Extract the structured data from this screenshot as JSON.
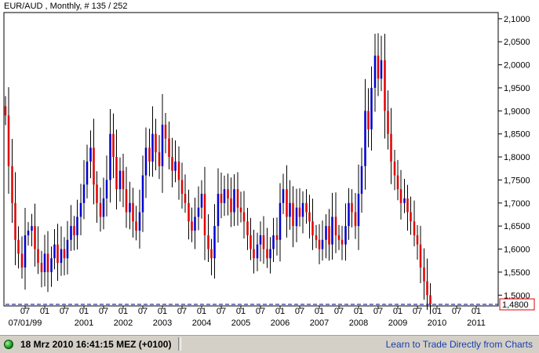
{
  "header": {
    "symbol": "EUR/AUD , Monthly, # 135 / 252"
  },
  "status_bar": {
    "datetime": "18 Mrz 2010 16:41:15  MEZ (+0100)",
    "link": "Learn to Trade Directly from Charts"
  },
  "colors": {
    "up": "#0000d0",
    "down": "#e00000",
    "wick": "#000000",
    "current_line": "#000080",
    "current_label_border": "#e00000"
  },
  "chart_data": {
    "type": "candlestick",
    "title": "EUR/AUD , Monthly, # 135 / 252",
    "y_axis": {
      "position": "right",
      "min": 1.48,
      "max": 2.11,
      "ticks": [
        "2,1000",
        "2,0500",
        "2,0000",
        "1,9500",
        "1,9000",
        "1,8500",
        "1,8000",
        "1,7500",
        "1,7000",
        "1,6500",
        "1,6000",
        "1,5500",
        "1,5000"
      ],
      "tick_values": [
        2.1,
        2.05,
        2.0,
        1.95,
        1.9,
        1.85,
        1.8,
        1.75,
        1.7,
        1.65,
        1.6,
        1.55,
        1.5
      ]
    },
    "current_value": {
      "value": 1.48,
      "label": "1,4800"
    },
    "x_axis": {
      "month_labels": [
        {
          "t": 1999.5,
          "label": "07"
        },
        {
          "t": 2000.0,
          "label": "01"
        },
        {
          "t": 2000.5,
          "label": "07"
        },
        {
          "t": 2001.0,
          "label": "01"
        },
        {
          "t": 2001.5,
          "label": "07"
        },
        {
          "t": 2002.0,
          "label": "01"
        },
        {
          "t": 2002.5,
          "label": "07"
        },
        {
          "t": 2003.0,
          "label": "01"
        },
        {
          "t": 2003.5,
          "label": "07"
        },
        {
          "t": 2004.0,
          "label": "01"
        },
        {
          "t": 2004.5,
          "label": "07"
        },
        {
          "t": 2005.0,
          "label": "01"
        },
        {
          "t": 2005.5,
          "label": "07"
        },
        {
          "t": 2006.0,
          "label": "01"
        },
        {
          "t": 2006.5,
          "label": "07"
        },
        {
          "t": 2007.0,
          "label": "01"
        },
        {
          "t": 2007.5,
          "label": "07"
        },
        {
          "t": 2008.0,
          "label": "01"
        },
        {
          "t": 2008.5,
          "label": "07"
        },
        {
          "t": 2009.0,
          "label": "01"
        },
        {
          "t": 2009.5,
          "label": "07"
        },
        {
          "t": 2010.0,
          "label": "01"
        },
        {
          "t": 2010.5,
          "label": "07"
        },
        {
          "t": 2011.0,
          "label": "01"
        }
      ],
      "year_labels": [
        {
          "t": 1999.5,
          "label": "07/01/99"
        },
        {
          "t": 2001.0,
          "label": "2001"
        },
        {
          "t": 2002.0,
          "label": "2002"
        },
        {
          "t": 2003.0,
          "label": "2003"
        },
        {
          "t": 2004.0,
          "label": "2004"
        },
        {
          "t": 2005.0,
          "label": "2005"
        },
        {
          "t": 2006.0,
          "label": "2006"
        },
        {
          "t": 2007.0,
          "label": "2007"
        },
        {
          "t": 2008.0,
          "label": "2008"
        },
        {
          "t": 2009.0,
          "label": "2009"
        },
        {
          "t": 2010.0,
          "label": "2010"
        },
        {
          "t": 2011.0,
          "label": "2011"
        }
      ],
      "start": 1999.0,
      "end": 2011.5
    },
    "series_close": [
      [
        1999.0,
        1.89
      ],
      [
        1999.08,
        1.78
      ],
      [
        1999.17,
        1.7
      ],
      [
        1999.25,
        1.62
      ],
      [
        1999.33,
        1.59
      ],
      [
        1999.42,
        1.56
      ],
      [
        1999.5,
        1.63
      ],
      [
        1999.58,
        1.64
      ],
      [
        1999.67,
        1.65
      ],
      [
        1999.75,
        1.6
      ],
      [
        1999.83,
        1.57
      ],
      [
        1999.92,
        1.55
      ],
      [
        2000.0,
        1.59
      ],
      [
        2000.08,
        1.55
      ],
      [
        2000.17,
        1.58
      ],
      [
        2000.25,
        1.61
      ],
      [
        2000.33,
        1.57
      ],
      [
        2000.42,
        1.6
      ],
      [
        2000.5,
        1.58
      ],
      [
        2000.58,
        1.62
      ],
      [
        2000.67,
        1.65
      ],
      [
        2000.75,
        1.63
      ],
      [
        2000.83,
        1.67
      ],
      [
        2000.92,
        1.7
      ],
      [
        2001.0,
        1.74
      ],
      [
        2001.08,
        1.79
      ],
      [
        2001.17,
        1.82
      ],
      [
        2001.25,
        1.74
      ],
      [
        2001.33,
        1.7
      ],
      [
        2001.42,
        1.67
      ],
      [
        2001.5,
        1.71
      ],
      [
        2001.58,
        1.75
      ],
      [
        2001.67,
        1.85
      ],
      [
        2001.75,
        1.8
      ],
      [
        2001.83,
        1.73
      ],
      [
        2001.92,
        1.77
      ],
      [
        2002.0,
        1.73
      ],
      [
        2002.08,
        1.68
      ],
      [
        2002.17,
        1.7
      ],
      [
        2002.25,
        1.66
      ],
      [
        2002.33,
        1.64
      ],
      [
        2002.42,
        1.68
      ],
      [
        2002.5,
        1.76
      ],
      [
        2002.58,
        1.82
      ],
      [
        2002.67,
        1.79
      ],
      [
        2002.75,
        1.85
      ],
      [
        2002.83,
        1.81
      ],
      [
        2002.92,
        1.78
      ],
      [
        2003.0,
        1.87
      ],
      [
        2003.08,
        1.84
      ],
      [
        2003.17,
        1.8
      ],
      [
        2003.25,
        1.77
      ],
      [
        2003.33,
        1.79
      ],
      [
        2003.42,
        1.75
      ],
      [
        2003.5,
        1.72
      ],
      [
        2003.58,
        1.7
      ],
      [
        2003.67,
        1.66
      ],
      [
        2003.75,
        1.64
      ],
      [
        2003.83,
        1.67
      ],
      [
        2003.92,
        1.69
      ],
      [
        2004.0,
        1.72
      ],
      [
        2004.08,
        1.63
      ],
      [
        2004.17,
        1.6
      ],
      [
        2004.25,
        1.58
      ],
      [
        2004.33,
        1.65
      ],
      [
        2004.42,
        1.72
      ],
      [
        2004.5,
        1.7
      ],
      [
        2004.58,
        1.73
      ],
      [
        2004.67,
        1.71
      ],
      [
        2004.75,
        1.68
      ],
      [
        2004.83,
        1.73
      ],
      [
        2004.92,
        1.69
      ],
      [
        2005.0,
        1.68
      ],
      [
        2005.08,
        1.66
      ],
      [
        2005.17,
        1.63
      ],
      [
        2005.25,
        1.6
      ],
      [
        2005.33,
        1.58
      ],
      [
        2005.42,
        1.61
      ],
      [
        2005.5,
        1.63
      ],
      [
        2005.58,
        1.6
      ],
      [
        2005.67,
        1.58
      ],
      [
        2005.75,
        1.6
      ],
      [
        2005.83,
        1.63
      ],
      [
        2005.92,
        1.62
      ],
      [
        2006.0,
        1.7
      ],
      [
        2006.08,
        1.73
      ],
      [
        2006.17,
        1.67
      ],
      [
        2006.25,
        1.7
      ],
      [
        2006.33,
        1.65
      ],
      [
        2006.42,
        1.69
      ],
      [
        2006.5,
        1.67
      ],
      [
        2006.58,
        1.7
      ],
      [
        2006.67,
        1.68
      ],
      [
        2006.75,
        1.66
      ],
      [
        2006.83,
        1.63
      ],
      [
        2006.92,
        1.62
      ],
      [
        2007.0,
        1.6
      ],
      [
        2007.08,
        1.62
      ],
      [
        2007.17,
        1.65
      ],
      [
        2007.25,
        1.61
      ],
      [
        2007.33,
        1.67
      ],
      [
        2007.42,
        1.63
      ],
      [
        2007.5,
        1.62
      ],
      [
        2007.58,
        1.61
      ],
      [
        2007.67,
        1.65
      ],
      [
        2007.75,
        1.7
      ],
      [
        2007.83,
        1.68
      ],
      [
        2007.92,
        1.65
      ],
      [
        2008.0,
        1.72
      ],
      [
        2008.08,
        1.78
      ],
      [
        2008.17,
        1.9
      ],
      [
        2008.25,
        1.86
      ],
      [
        2008.33,
        1.95
      ],
      [
        2008.42,
        2.02
      ],
      [
        2008.5,
        1.97
      ],
      [
        2008.58,
        2.01
      ],
      [
        2008.67,
        1.9
      ],
      [
        2008.75,
        1.85
      ],
      [
        2008.83,
        1.79
      ],
      [
        2008.92,
        1.76
      ],
      [
        2009.0,
        1.73
      ],
      [
        2009.08,
        1.7
      ],
      [
        2009.17,
        1.71
      ],
      [
        2009.25,
        1.68
      ],
      [
        2009.33,
        1.66
      ],
      [
        2009.42,
        1.63
      ],
      [
        2009.5,
        1.61
      ],
      [
        2009.58,
        1.56
      ],
      [
        2009.67,
        1.53
      ],
      [
        2009.75,
        1.5
      ],
      [
        2009.83,
        1.48
      ]
    ]
  }
}
